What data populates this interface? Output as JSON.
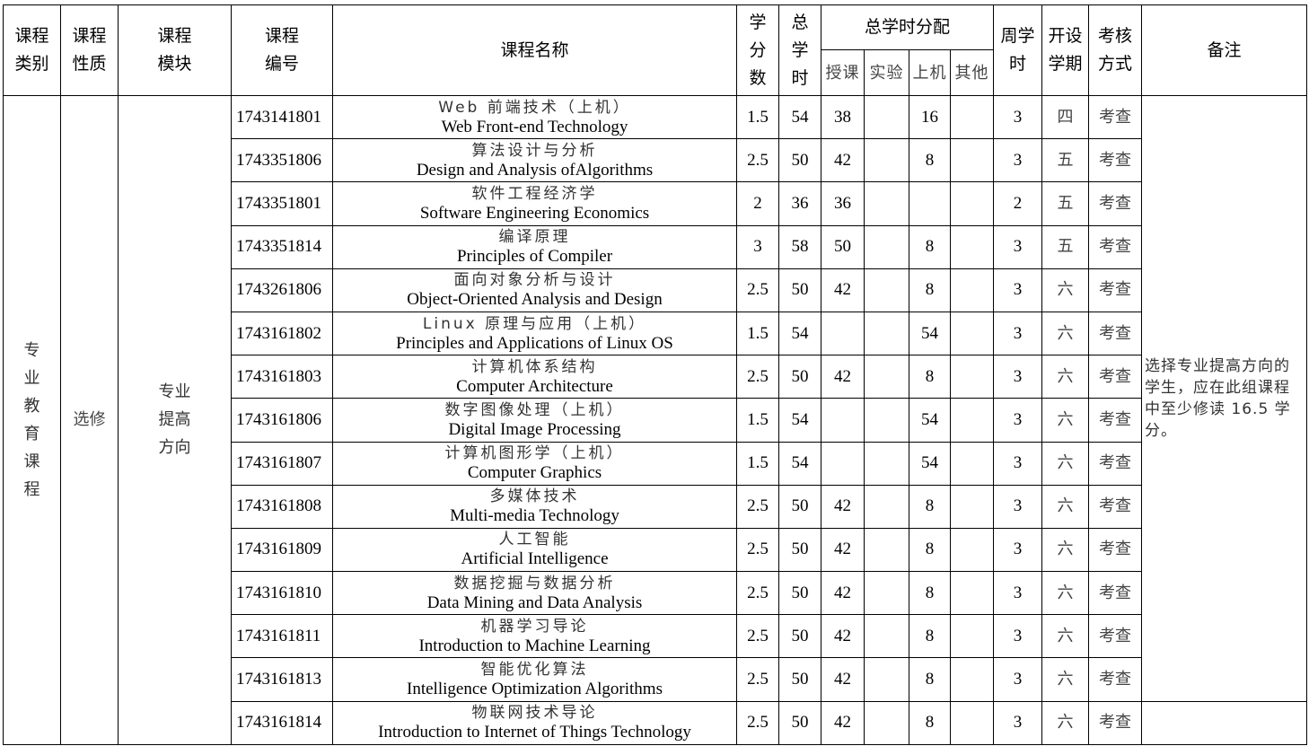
{
  "headers": {
    "category": "课程\n类别",
    "nature": "课程\n性质",
    "module": "课程\n模块",
    "code": "课程\n编号",
    "name": "课程名称",
    "credits": "学\n分\n数",
    "total_hours": "总\n学\n时",
    "distribution": "总学时分配",
    "lecture": "授课",
    "experiment": "实验",
    "computer": "上机",
    "other": "其他",
    "weekly_hours": "周学\n时",
    "semester": "开设\n学期",
    "assessment": "考核\n方式",
    "remarks": "备注"
  },
  "group": {
    "category": "专\n业\n教\n育\n课\n程",
    "nature": "选修",
    "module": "专业\n提高\n方向",
    "remark": "选择专业提高方向的学生，应在此组课程中至少修读 16.5 学分。"
  },
  "rows": [
    {
      "code": "1743141801",
      "zh": "Web 前端技术（上机）",
      "en": "Web Front-end Technology",
      "credits": "1.5",
      "total": "54",
      "lecture": "38",
      "experiment": "",
      "computer": "16",
      "other": "",
      "weekly": "3",
      "semester": "四",
      "assessment": "考查"
    },
    {
      "code": "1743351806",
      "zh": "算法设计与分析",
      "en": "Design and Analysis ofAlgorithms",
      "credits": "2.5",
      "total": "50",
      "lecture": "42",
      "experiment": "",
      "computer": "8",
      "other": "",
      "weekly": "3",
      "semester": "五",
      "assessment": "考查"
    },
    {
      "code": "1743351801",
      "zh": "软件工程经济学",
      "en": "Software Engineering Economics",
      "credits": "2",
      "total": "36",
      "lecture": "36",
      "experiment": "",
      "computer": "",
      "other": "",
      "weekly": "2",
      "semester": "五",
      "assessment": "考查"
    },
    {
      "code": "1743351814",
      "zh": "编译原理",
      "en": "Principles of Compiler",
      "credits": "3",
      "total": "58",
      "lecture": "50",
      "experiment": "",
      "computer": "8",
      "other": "",
      "weekly": "3",
      "semester": "五",
      "assessment": "考查"
    },
    {
      "code": "1743261806",
      "zh": "面向对象分析与设计",
      "en": "Object-Oriented Analysis and Design",
      "credits": "2.5",
      "total": "50",
      "lecture": "42",
      "experiment": "",
      "computer": "8",
      "other": "",
      "weekly": "3",
      "semester": "六",
      "assessment": "考查"
    },
    {
      "code": "1743161802",
      "zh": "Linux 原理与应用（上机）",
      "en": "Principles and Applications of Linux OS",
      "credits": "1.5",
      "total": "54",
      "lecture": "",
      "experiment": "",
      "computer": "54",
      "other": "",
      "weekly": "3",
      "semester": "六",
      "assessment": "考查"
    },
    {
      "code": "1743161803",
      "zh": "计算机体系结构",
      "en": "Computer Architecture",
      "credits": "2.5",
      "total": "50",
      "lecture": "42",
      "experiment": "",
      "computer": "8",
      "other": "",
      "weekly": "3",
      "semester": "六",
      "assessment": "考查"
    },
    {
      "code": "1743161806",
      "zh": "数字图像处理（上机）",
      "en": "Digital Image Processing",
      "credits": "1.5",
      "total": "54",
      "lecture": "",
      "experiment": "",
      "computer": "54",
      "other": "",
      "weekly": "3",
      "semester": "六",
      "assessment": "考查"
    },
    {
      "code": "1743161807",
      "zh": "计算机图形学（上机）",
      "en": "Computer Graphics",
      "credits": "1.5",
      "total": "54",
      "lecture": "",
      "experiment": "",
      "computer": "54",
      "other": "",
      "weekly": "3",
      "semester": "六",
      "assessment": "考查"
    },
    {
      "code": "1743161808",
      "zh": "多媒体技术",
      "en": "Multi-media Technology",
      "credits": "2.5",
      "total": "50",
      "lecture": "42",
      "experiment": "",
      "computer": "8",
      "other": "",
      "weekly": "3",
      "semester": "六",
      "assessment": "考查"
    },
    {
      "code": "1743161809",
      "zh": "人工智能",
      "en": "Artificial Intelligence",
      "credits": "2.5",
      "total": "50",
      "lecture": "42",
      "experiment": "",
      "computer": "8",
      "other": "",
      "weekly": "3",
      "semester": "六",
      "assessment": "考查"
    },
    {
      "code": "1743161810",
      "zh": "数据挖掘与数据分析",
      "en": "Data Mining and Data Analysis",
      "credits": "2.5",
      "total": "50",
      "lecture": "42",
      "experiment": "",
      "computer": "8",
      "other": "",
      "weekly": "3",
      "semester": "六",
      "assessment": "考查"
    },
    {
      "code": "1743161811",
      "zh": "机器学习导论",
      "en": "Introduction to Machine Learning",
      "credits": "2.5",
      "total": "50",
      "lecture": "42",
      "experiment": "",
      "computer": "8",
      "other": "",
      "weekly": "3",
      "semester": "六",
      "assessment": "考查"
    },
    {
      "code": "1743161813",
      "zh": "智能优化算法",
      "en": "Intelligence Optimization Algorithms",
      "credits": "2.5",
      "total": "50",
      "lecture": "42",
      "experiment": "",
      "computer": "8",
      "other": "",
      "weekly": "3",
      "semester": "六",
      "assessment": "考查"
    },
    {
      "code": "1743161814",
      "zh": "物联网技术导论",
      "en": "Introduction to Internet of Things Technology",
      "credits": "2.5",
      "total": "50",
      "lecture": "42",
      "experiment": "",
      "computer": "8",
      "other": "",
      "weekly": "3",
      "semester": "六",
      "assessment": "考查"
    }
  ]
}
